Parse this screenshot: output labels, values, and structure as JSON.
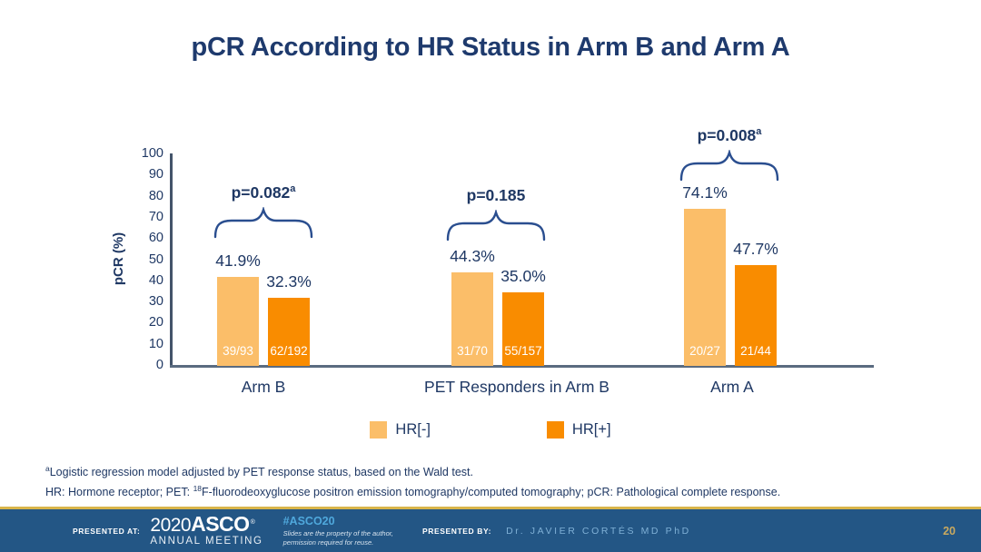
{
  "title": "pCR According to HR Status in Arm B and Arm A",
  "chart_data": {
    "type": "bar",
    "title": "pCR According to HR Status in Arm B and Arm A",
    "xlabel": "",
    "ylabel": "pCR (%)",
    "ylim": [
      0,
      100
    ],
    "y_ticks": [
      0,
      10,
      20,
      30,
      40,
      50,
      60,
      70,
      80,
      90,
      100
    ],
    "grid": false,
    "legend_position": "bottom",
    "legend": [
      {
        "label": "HR[-]",
        "color": "#FBBE69"
      },
      {
        "label": "HR[+]",
        "color": "#F98C00"
      }
    ],
    "groups": [
      {
        "category": "Arm B",
        "p_label": "p=0.082",
        "p_sup": "a",
        "series": [
          {
            "name": "HR[-]",
            "value": 41.9,
            "value_label": "41.9%",
            "fraction": "39/93"
          },
          {
            "name": "HR[+]",
            "value": 32.3,
            "value_label": "32.3%",
            "fraction": "62/192"
          }
        ]
      },
      {
        "category": "PET Responders in Arm B",
        "p_label": "p=0.185",
        "p_sup": "",
        "series": [
          {
            "name": "HR[-]",
            "value": 44.3,
            "value_label": "44.3%",
            "fraction": "31/70"
          },
          {
            "name": "HR[+]",
            "value": 35.0,
            "value_label": "35.0%",
            "fraction": "55/157"
          }
        ]
      },
      {
        "category": "Arm A",
        "p_label": "p=0.008",
        "p_sup": "a",
        "series": [
          {
            "name": "HR[-]",
            "value": 74.1,
            "value_label": "74.1%",
            "fraction": "20/27"
          },
          {
            "name": "HR[+]",
            "value": 47.7,
            "value_label": "47.7%",
            "fraction": "21/44"
          }
        ]
      }
    ]
  },
  "footnotes": {
    "line1_sup": "a",
    "line1_text": "Logistic regression model adjusted by PET response status, based on the Wald test.",
    "line2_before": "HR: Hormone receptor; PET: ",
    "line2_sup": "18",
    "line2_after": "F-fluorodeoxyglucose positron emission tomography/computed tomography; pCR: Pathological complete response."
  },
  "footer": {
    "presented_at_label": "PRESENTED AT:",
    "logo_year": "2020",
    "logo_name": "ASCO",
    "logo_reg": "®",
    "logo_sub": "ANNUAL MEETING",
    "hashtag": "#ASCO20",
    "disclaimer_line1": "Slides are the property of the author,",
    "disclaimer_line2": "permission required for reuse.",
    "presented_by_label": "PRESENTED BY:",
    "presenter": "Dr. JAVIER CORTÉS MD PhD",
    "page_number": "20"
  },
  "colors": {
    "title_text": "#1E3A6D",
    "axis_text": "#1F3864",
    "axis_line": "#44546A",
    "bar_light": "#FBBE69",
    "bar_dark": "#F98C00",
    "brace": "#2A4E8F",
    "footer_bg": "#235685",
    "footer_gold_line": "#D9B54A",
    "hashtag_blue": "#4FA8DC",
    "presenter_blue": "#7FB0D6",
    "page_number_gold": "#C9A95F"
  }
}
